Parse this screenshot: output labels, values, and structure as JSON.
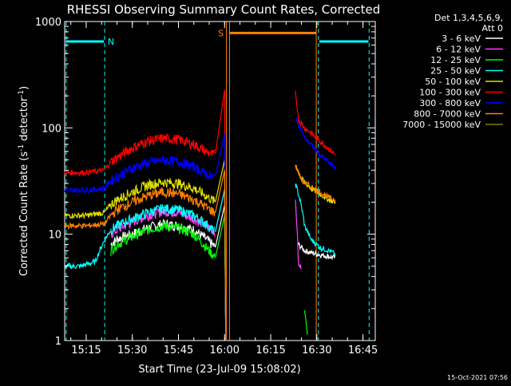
{
  "chart_data": {
    "type": "line",
    "title": "RHESSI Observing Summary Count Rates, Corrected",
    "xlabel": "Start Time (23-Jul-09 15:08:02)",
    "ylabel_main": "Corrected Count Rate (s",
    "ylabel_sup1": "-1",
    "ylabel_mid": " detector",
    "ylabel_sup2": "-1",
    "ylabel_end": ")",
    "yscale": "log",
    "ylim": [
      1,
      1000
    ],
    "xlim_minutes": [
      0,
      101
    ],
    "x_ticks": [
      {
        "minute": 7,
        "label": "15:15"
      },
      {
        "minute": 22,
        "label": "15:30"
      },
      {
        "minute": 37,
        "label": "15:45"
      },
      {
        "minute": 52,
        "label": "16:00"
      },
      {
        "minute": 67,
        "label": "16:15"
      },
      {
        "minute": 82,
        "label": "16:30"
      },
      {
        "minute": 97,
        "label": "16:45"
      }
    ],
    "y_ticks": [
      {
        "value": 1,
        "label": "1"
      },
      {
        "value": 10,
        "label": "10"
      },
      {
        "value": 100,
        "label": "100"
      },
      {
        "value": 1000,
        "label": "1000"
      }
    ],
    "legend_header": [
      "Det 1,3,4,5,6,9,",
      "Att 0"
    ],
    "series": [
      {
        "name": "3 - 6 keV",
        "color": "#ffffff",
        "seg1": [
          [
            15,
            8
          ],
          [
            17,
            9
          ],
          [
            22,
            10
          ],
          [
            27,
            11.5
          ],
          [
            32,
            12.5
          ],
          [
            37,
            12
          ],
          [
            42,
            11
          ],
          [
            46,
            9
          ],
          [
            48,
            8
          ],
          [
            49,
            7.5
          ]
        ],
        "seg2": [
          [
            76,
            8
          ],
          [
            78,
            7
          ],
          [
            82,
            6.5
          ],
          [
            88,
            6
          ]
        ]
      },
      {
        "name": "6 - 12 keV",
        "color": "#ff40ff",
        "seg1": [
          [
            15,
            10
          ],
          [
            17,
            11
          ],
          [
            22,
            13
          ],
          [
            27,
            15
          ],
          [
            32,
            16.5
          ],
          [
            37,
            16
          ],
          [
            42,
            14
          ],
          [
            46,
            12
          ],
          [
            48,
            11
          ],
          [
            49,
            10.5
          ]
        ],
        "seg2": [
          [
            75,
            20
          ],
          [
            76,
            5
          ],
          [
            77,
            5
          ]
        ]
      },
      {
        "name": "12 - 25 keV",
        "color": "#00ff00",
        "seg1": [
          [
            15,
            7
          ],
          [
            17,
            8
          ],
          [
            22,
            9.5
          ],
          [
            27,
            11
          ],
          [
            32,
            12
          ],
          [
            37,
            11.5
          ],
          [
            42,
            10
          ],
          [
            46,
            7.5
          ],
          [
            48,
            6.5
          ],
          [
            49,
            6
          ]
        ],
        "seg2": [
          [
            78,
            2
          ],
          [
            79,
            1
          ]
        ]
      },
      {
        "name": "25 - 50 keV",
        "color": "#00ffff",
        "seg0": [
          [
            0,
            5
          ],
          [
            5,
            5
          ],
          [
            10,
            5.5
          ],
          [
            15,
            11
          ]
        ],
        "seg1": [
          [
            15,
            11
          ],
          [
            17,
            12
          ],
          [
            22,
            14
          ],
          [
            27,
            16
          ],
          [
            32,
            17.5
          ],
          [
            37,
            17
          ],
          [
            42,
            15
          ],
          [
            46,
            12.5
          ],
          [
            48,
            11
          ],
          [
            49,
            10.5
          ]
        ],
        "seg2": [
          [
            75,
            30
          ],
          [
            78,
            12
          ],
          [
            80,
            9
          ],
          [
            83,
            7.5
          ],
          [
            86,
            7
          ],
          [
            88,
            6.5
          ]
        ]
      },
      {
        "name": "50 - 100 keV",
        "color": "#e0e000",
        "seg0": [
          [
            0,
            15
          ],
          [
            7,
            15
          ],
          [
            13,
            16
          ],
          [
            15,
            19
          ]
        ],
        "seg1": [
          [
            15,
            19
          ],
          [
            17,
            21
          ],
          [
            22,
            25
          ],
          [
            27,
            29
          ],
          [
            32,
            31
          ],
          [
            37,
            30
          ],
          [
            42,
            27
          ],
          [
            46,
            23
          ],
          [
            48,
            21
          ],
          [
            49,
            20
          ]
        ],
        "seg2": [
          [
            75,
            45
          ],
          [
            77,
            33
          ],
          [
            80,
            27
          ],
          [
            83,
            24
          ],
          [
            86,
            21
          ],
          [
            88,
            20
          ]
        ]
      },
      {
        "name": "100 - 300 keV",
        "color": "#ff0000",
        "seg0": [
          [
            0,
            38
          ],
          [
            7,
            38
          ],
          [
            13,
            40
          ],
          [
            15,
            48
          ]
        ],
        "seg1": [
          [
            15,
            48
          ],
          [
            18,
            55
          ],
          [
            22,
            65
          ],
          [
            27,
            75
          ],
          [
            32,
            80
          ],
          [
            37,
            78
          ],
          [
            42,
            70
          ],
          [
            46,
            60
          ],
          [
            48,
            56
          ],
          [
            49,
            57
          ]
        ],
        "seg2": [
          [
            75,
            220
          ],
          [
            76,
            120
          ],
          [
            78,
            100
          ],
          [
            80,
            90
          ],
          [
            83,
            75
          ],
          [
            86,
            63
          ],
          [
            88,
            56
          ]
        ]
      },
      {
        "name": "300 - 800 keV",
        "color": "#0000ff",
        "seg0": [
          [
            0,
            26
          ],
          [
            7,
            26
          ],
          [
            13,
            27
          ],
          [
            15,
            32
          ]
        ],
        "seg1": [
          [
            15,
            32
          ],
          [
            18,
            36
          ],
          [
            22,
            42
          ],
          [
            27,
            47
          ],
          [
            32,
            50
          ],
          [
            37,
            48
          ],
          [
            42,
            43
          ],
          [
            46,
            37
          ],
          [
            48,
            34
          ],
          [
            49,
            35
          ]
        ],
        "seg2": [
          [
            75,
            120
          ],
          [
            76,
            110
          ],
          [
            78,
            80
          ],
          [
            80,
            70
          ],
          [
            83,
            55
          ],
          [
            86,
            47
          ],
          [
            88,
            42
          ]
        ]
      },
      {
        "name": "800 - 7000 keV",
        "color": "#ff8000",
        "seg0": [
          [
            0,
            12
          ],
          [
            7,
            12
          ],
          [
            13,
            12.5
          ],
          [
            15,
            15
          ]
        ],
        "seg1": [
          [
            15,
            15
          ],
          [
            17,
            17
          ],
          [
            22,
            20
          ],
          [
            27,
            23
          ],
          [
            32,
            25
          ],
          [
            37,
            24
          ],
          [
            42,
            21
          ],
          [
            46,
            18
          ],
          [
            48,
            16.5
          ],
          [
            49,
            16
          ]
        ],
        "seg2": [
          [
            75,
            45
          ],
          [
            77,
            32
          ],
          [
            80,
            28
          ],
          [
            83,
            25
          ],
          [
            86,
            22
          ],
          [
            88,
            21
          ]
        ]
      },
      {
        "name": "7000 - 15000 keV",
        "color": "#808000",
        "seg2": []
      }
    ],
    "annotations": [
      {
        "label": "N",
        "color": "#00ffff"
      },
      {
        "label": "S",
        "color": "#ff8000"
      }
    ],
    "footer_timestamp": "15-Oct-2021 07:56"
  }
}
